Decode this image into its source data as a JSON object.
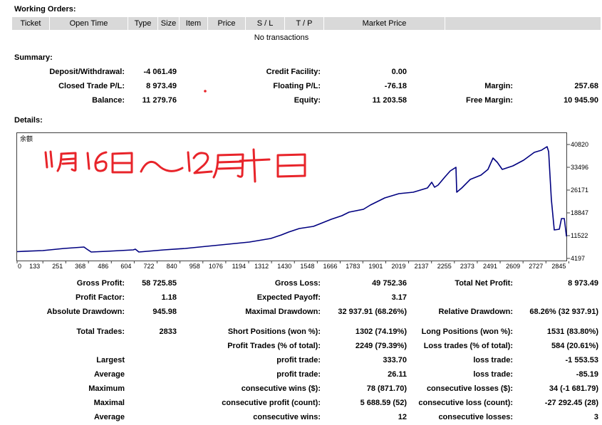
{
  "working_orders": {
    "title": "Working Orders:",
    "columns": [
      "Ticket",
      "Open Time",
      "Type",
      "Size",
      "Item",
      "Price",
      "S / L",
      "T / P",
      "Market Price"
    ],
    "empty_message": "No transactions"
  },
  "summary": {
    "title": "Summary:",
    "rows": [
      {
        "l1": "Deposit/Withdrawal:",
        "v1": "-4 061.49",
        "l2": "Credit Facility:",
        "v2": "0.00"
      },
      {
        "l1": "Closed Trade P/L:",
        "v1": "8 973.49",
        "l2": "Floating P/L:",
        "v2": "-76.18",
        "l3": "Margin:",
        "v3": "257.68"
      },
      {
        "l1": "Balance:",
        "v1": "11 279.76",
        "l2": "Equity:",
        "v2": "11 203.58",
        "l3": "Free Margin:",
        "v3": "10 945.90"
      }
    ]
  },
  "details": {
    "title": "Details:"
  },
  "chart_data": {
    "type": "line",
    "series": [
      {
        "name": "余额",
        "x": [
          0,
          40,
          132,
          242,
          345,
          360,
          382,
          463,
          599,
          610,
          628,
          757,
          867,
          977,
          1088,
          1198,
          1308,
          1363,
          1400,
          1455,
          1528,
          1565,
          1620,
          1675,
          1712,
          1786,
          1822,
          1896,
          1969,
          2043,
          2116,
          2138,
          2153,
          2171,
          2208,
          2234,
          2263,
          2267,
          2293,
          2337,
          2392,
          2428,
          2454,
          2476,
          2502,
          2557,
          2612,
          2667,
          2704,
          2733,
          2741,
          2755,
          2770,
          2796,
          2807,
          2822,
          2833
        ],
        "y": [
          6368,
          6500,
          6720,
          7400,
          7860,
          7170,
          6260,
          6490,
          6940,
          7170,
          6260,
          6940,
          7400,
          8090,
          8780,
          9460,
          10610,
          11750,
          12670,
          13810,
          14500,
          15410,
          16790,
          17930,
          19080,
          19990,
          21370,
          23650,
          25030,
          25490,
          26860,
          28690,
          27090,
          27770,
          30520,
          32350,
          33500,
          25490,
          26860,
          29610,
          30980,
          32810,
          36470,
          35100,
          32810,
          33950,
          35790,
          38300,
          38990,
          40130,
          38530,
          23200,
          13350,
          13580,
          17020,
          17020,
          11280
        ]
      }
    ],
    "x_ticks": [
      0,
      133,
      251,
      368,
      486,
      604,
      722,
      840,
      958,
      1076,
      1194,
      1312,
      1430,
      1548,
      1666,
      1783,
      1901,
      2019,
      2137,
      2255,
      2373,
      2491,
      2609,
      2727,
      2845
    ],
    "y_ticks": [
      40820,
      33496,
      26171,
      18847,
      11522,
      4197
    ],
    "y_axis_side": "right",
    "grid": false,
    "legend": "none"
  },
  "annotation": {
    "handwritten_text": "11月16日～12月十日"
  },
  "stats": {
    "rows": [
      {
        "l1": "Gross Profit:",
        "v1": "58 725.85",
        "l2": "Gross Loss:",
        "v2": "49 752.36",
        "l3": "Total Net Profit:",
        "v3": "8 973.49"
      },
      {
        "l1": "Profit Factor:",
        "v1": "1.18",
        "l2": "Expected Payoff:",
        "v2": "3.17"
      },
      {
        "l1": "Absolute Drawdown:",
        "v1": "945.98",
        "l2": "Maximal Drawdown:",
        "v2": "32 937.91 (68.26%)",
        "l3": "Relative Drawdown:",
        "v3": "68.26% (32 937.91)"
      },
      {
        "l1": "Total Trades:",
        "v1": "2833",
        "l2": "Short Positions (won %):",
        "v2": "1302 (74.19%)",
        "l3": "Long Positions (won %):",
        "v3": "1531 (83.80%)"
      },
      {
        "l2": "Profit Trades (% of total):",
        "v2": "2249 (79.39%)",
        "l3": "Loss trades (% of total):",
        "v3": "584 (20.61%)"
      },
      {
        "l1": "Largest",
        "l2": "profit trade:",
        "v2": "333.70",
        "l3": "loss trade:",
        "v3": "-1 553.53"
      },
      {
        "l1": "Average",
        "l2": "profit trade:",
        "v2": "26.11",
        "l3": "loss trade:",
        "v3": "-85.19"
      },
      {
        "l1": "Maximum",
        "l2": "consecutive wins ($):",
        "v2": "78 (871.70)",
        "l3": "consecutive losses ($):",
        "v3": "34 (-1 681.79)"
      },
      {
        "l1": "Maximal",
        "l2": "consecutive profit (count):",
        "v2": "5 688.59 (52)",
        "l3": "consecutive loss (count):",
        "v3": "-27 292.45 (28)"
      },
      {
        "l1": "Average",
        "l2": "consecutive wins:",
        "v2": "12",
        "l3": "consecutive losses:",
        "v3": "3"
      }
    ]
  },
  "colors": {
    "header_bg": "#d9d9d9",
    "chart_line": "#000080",
    "chart_border": "#404040",
    "annotation": "#e8242a"
  }
}
